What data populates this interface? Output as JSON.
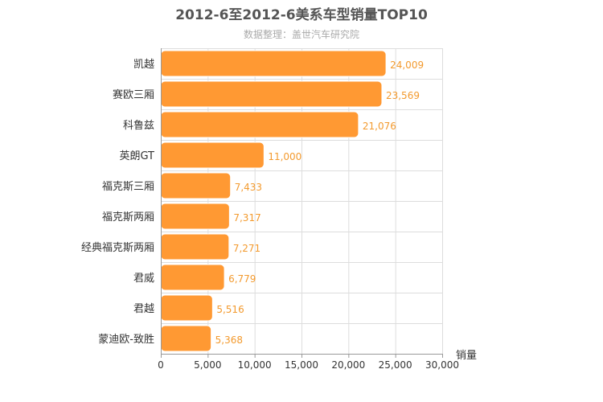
{
  "chart_data": {
    "type": "bar",
    "orientation": "horizontal",
    "title": "2012-6至2012-6美系车型销量TOP10",
    "subtitle": "数据整理：盖世汽车研究院",
    "categories": [
      "凯越",
      "赛欧三厢",
      "科鲁兹",
      "英朗GT",
      "福克斯三厢",
      "福克斯两厢",
      "经典福克斯两厢",
      "君威",
      "君越",
      "蒙迪欧-致胜"
    ],
    "values": [
      24009,
      23569,
      21076,
      11000,
      7433,
      7317,
      7271,
      6779,
      5516,
      5368
    ],
    "value_labels": [
      "24,009",
      "23,569",
      "21,076",
      "11,000",
      "7,433",
      "7,317",
      "7,271",
      "6,779",
      "5,516",
      "5,368"
    ],
    "xlabel": "销量",
    "ylabel": "",
    "xlim": [
      0,
      30000
    ],
    "xticks": [
      0,
      5000,
      10000,
      15000,
      20000,
      25000,
      30000
    ],
    "xtick_labels": [
      "0",
      "5,000",
      "10,000",
      "15,000",
      "20,000",
      "25,000",
      "30,000"
    ],
    "bar_color": "#ff9933",
    "value_label_color": "#f39a2e",
    "grid": true,
    "legend": "none"
  }
}
